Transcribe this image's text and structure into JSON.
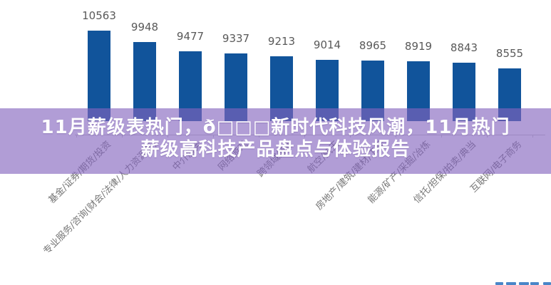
{
  "banner": {
    "line1": "11月薪级表热门，ð□□□新时代科技风潮，11月热门",
    "line2": "薪级高科技产品盘点与体验报告",
    "background": "rgba(132,99,190,0.63)",
    "text_color": "#ffffff"
  },
  "chart_data": {
    "type": "bar",
    "title": "",
    "xlabel": "",
    "ylabel": "",
    "categories": [
      "基金/证券/期货/投资",
      "专业服务/咨询(财会/法律/人力资源等)",
      "中介服务",
      "网络游戏",
      "跨领域经营",
      "航空/航天",
      "房地产/建筑/建材/工程",
      "能源/矿产/采掘/冶炼",
      "信托/担保/拍卖/典当",
      "互联网/电子商务"
    ],
    "values": [
      10563,
      9948,
      9477,
      9337,
      9213,
      9014,
      8965,
      8919,
      8843,
      8555
    ],
    "bar_color": "#11549b",
    "value_label_color": "#595959",
    "category_label_color": "#767676",
    "axis_color": "#c9c9c9",
    "grid": false,
    "legend": false,
    "category_labels_rotation_deg": 45,
    "value_labels_shown": true,
    "baseline_value_approx": 5754
  },
  "watermark": {
    "color": "#4a86c8"
  }
}
